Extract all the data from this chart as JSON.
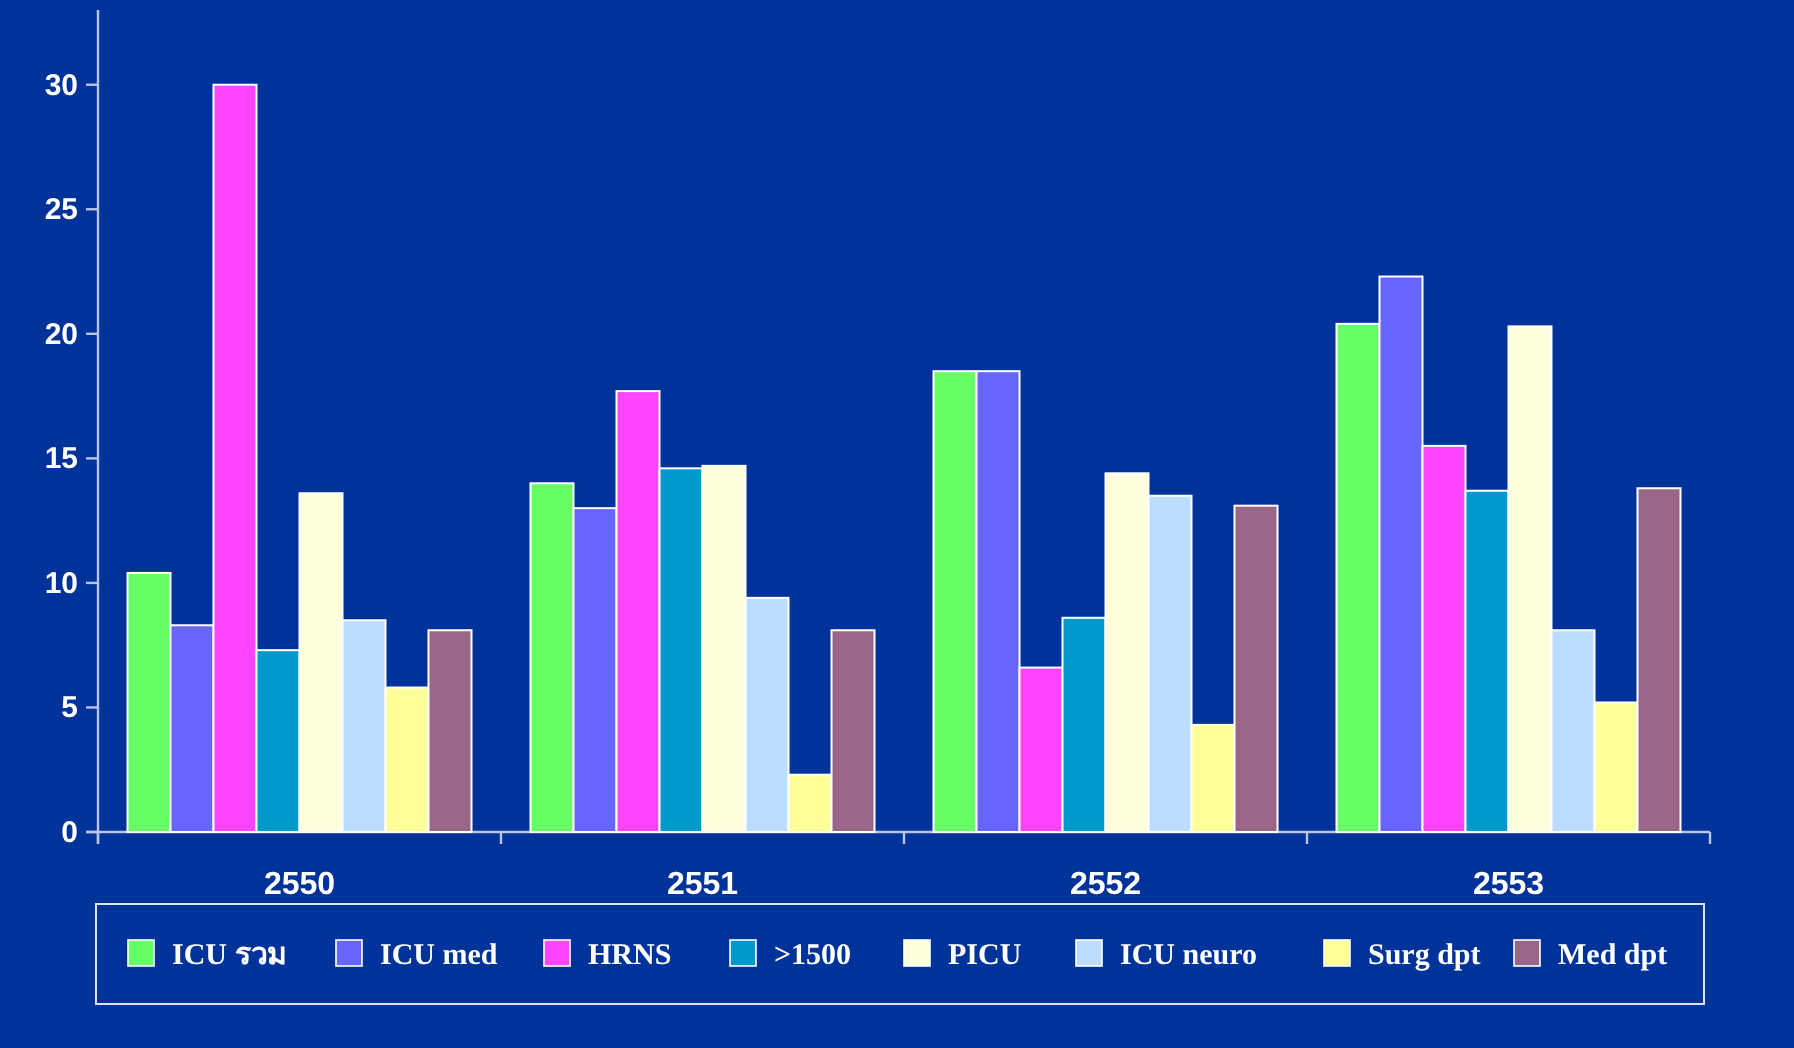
{
  "chart_data": {
    "type": "bar",
    "categories": [
      "2550",
      "2551",
      "2552",
      "2553"
    ],
    "ylim": [
      0,
      33
    ],
    "yticks": [
      0,
      5,
      10,
      15,
      20,
      25,
      30
    ],
    "grid": false,
    "legend": "bottom",
    "series": [
      {
        "name": "ICU รวม",
        "color": "#66ff66",
        "values": [
          10.4,
          14.0,
          18.5,
          20.4
        ]
      },
      {
        "name": "ICU med",
        "color": "#6666ff",
        "values": [
          8.3,
          13.0,
          18.5,
          22.3
        ]
      },
      {
        "name": "HRNS",
        "color": "#ff44ff",
        "values": [
          30.0,
          17.7,
          6.6,
          15.5
        ]
      },
      {
        "name": ">1500",
        "color": "#0099cc",
        "values": [
          7.3,
          14.6,
          8.6,
          13.7
        ]
      },
      {
        "name": "PICU",
        "color": "#ffffdd",
        "values": [
          13.6,
          14.7,
          14.4,
          20.3
        ]
      },
      {
        "name": "ICU neuro",
        "color": "#bbddff",
        "values": [
          8.5,
          9.4,
          13.5,
          8.1
        ]
      },
      {
        "name": "Surg dpt",
        "color": "#ffff99",
        "values": [
          5.8,
          2.3,
          4.3,
          5.2
        ]
      },
      {
        "name": "Med dpt",
        "color": "#996688",
        "values": [
          8.1,
          8.1,
          13.1,
          13.8
        ]
      }
    ]
  }
}
